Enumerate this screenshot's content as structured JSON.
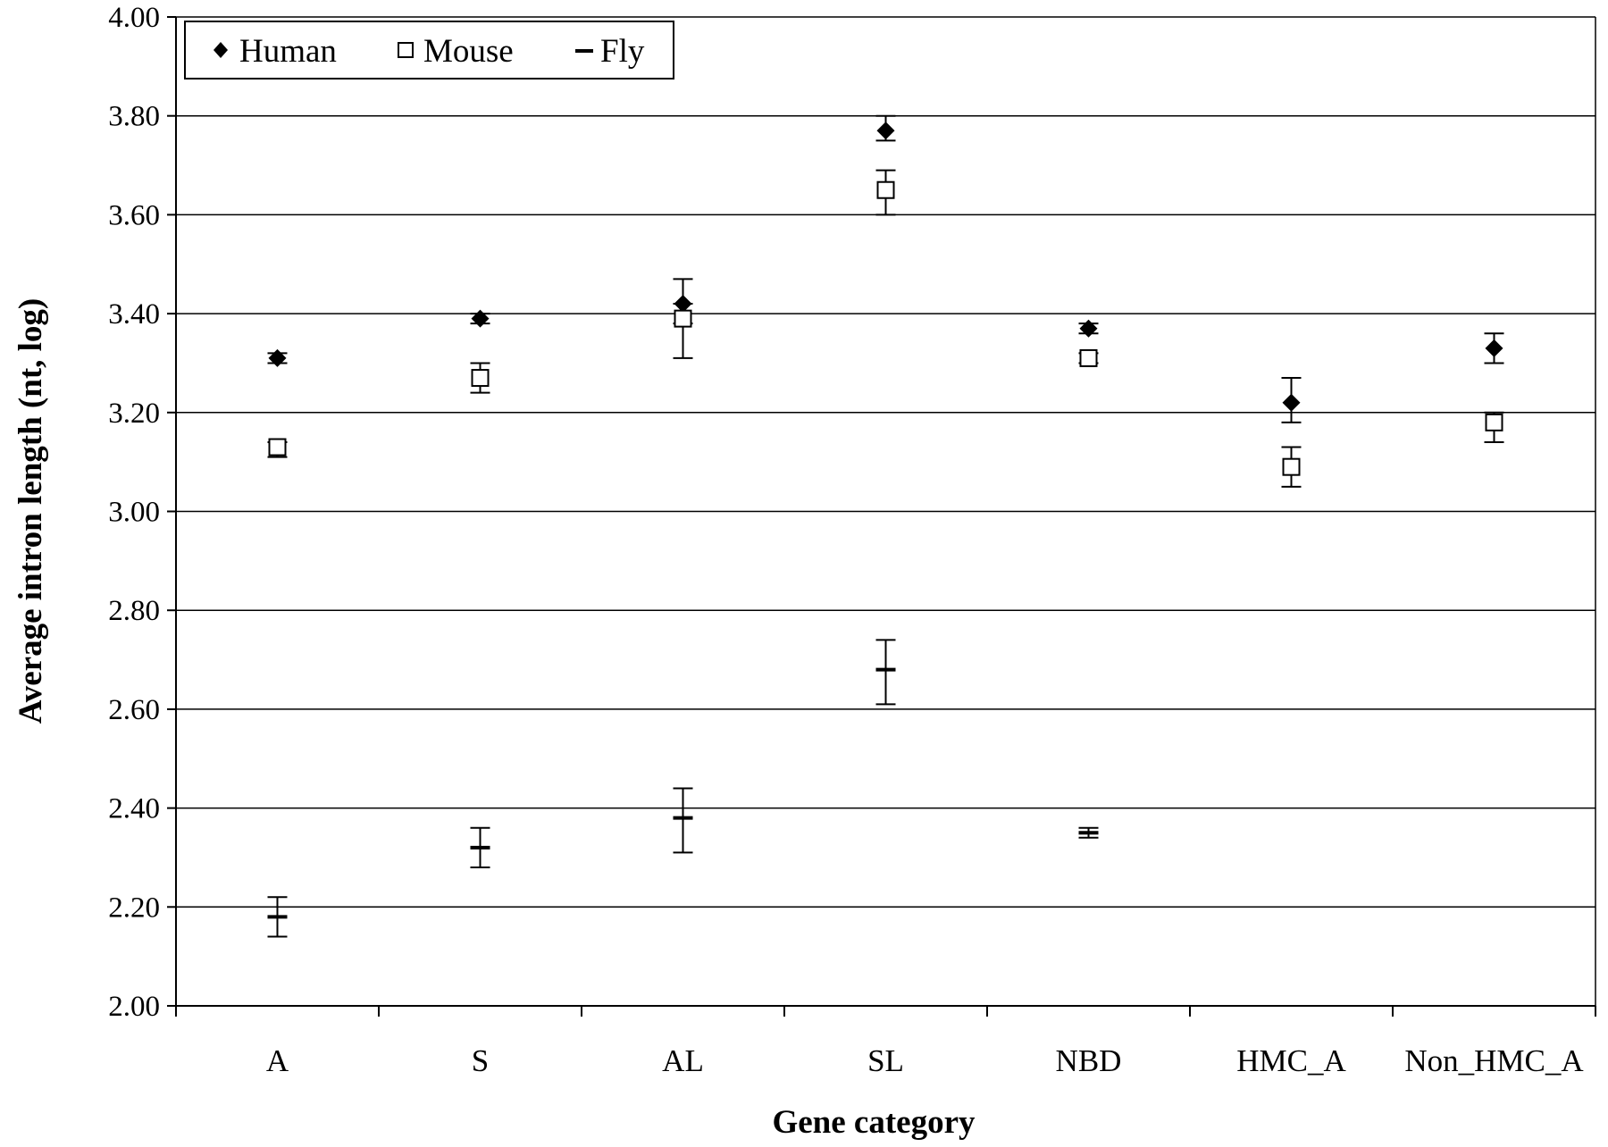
{
  "chart_data": {
    "type": "scatter",
    "title": "",
    "xlabel": "Gene category",
    "ylabel": "Average intron length (nt, log)",
    "categories": [
      "A",
      "S",
      "AL",
      "SL",
      "NBD",
      "HMC_A",
      "Non_HMC_A"
    ],
    "ylim": [
      2.0,
      4.0
    ],
    "y_ticks": [
      "2.00",
      "2.20",
      "2.40",
      "2.60",
      "2.80",
      "3.00",
      "3.20",
      "3.40",
      "3.60",
      "3.80",
      "4.00"
    ],
    "grid": "horizontal",
    "legend_position": "top-left",
    "series": [
      {
        "name": "Human",
        "marker": "filled-diamond",
        "color": "#000000",
        "values": [
          3.31,
          3.39,
          3.42,
          3.77,
          3.37,
          3.22,
          3.33
        ],
        "err_low": [
          3.3,
          3.38,
          3.38,
          3.75,
          3.36,
          3.18,
          3.3
        ],
        "err_high": [
          3.32,
          3.4,
          3.47,
          3.8,
          3.38,
          3.27,
          3.36
        ]
      },
      {
        "name": "Mouse",
        "marker": "open-square",
        "color": "#000000",
        "values": [
          3.13,
          3.27,
          3.39,
          3.65,
          3.31,
          3.09,
          3.18
        ],
        "err_low": [
          3.11,
          3.24,
          3.31,
          3.6,
          3.3,
          3.05,
          3.14
        ],
        "err_high": [
          3.14,
          3.3,
          3.42,
          3.69,
          3.32,
          3.13,
          3.2
        ]
      },
      {
        "name": "Fly",
        "marker": "dash",
        "color": "#000000",
        "values": [
          2.18,
          2.32,
          2.38,
          2.68,
          2.35,
          null,
          null
        ],
        "err_low": [
          2.14,
          2.28,
          2.31,
          2.61,
          2.34,
          null,
          null
        ],
        "err_high": [
          2.22,
          2.36,
          2.44,
          2.74,
          2.36,
          null,
          null
        ]
      }
    ]
  }
}
